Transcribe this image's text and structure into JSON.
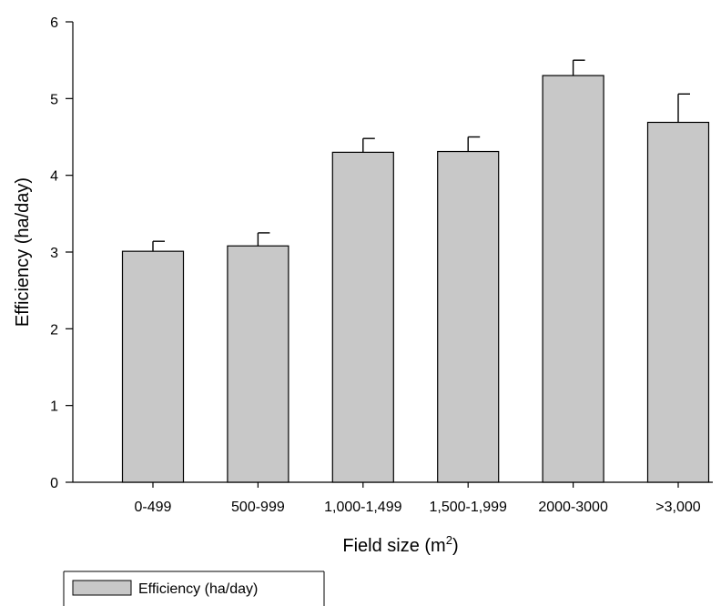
{
  "chart_data": {
    "type": "bar",
    "categories": [
      "0-499",
      "500-999",
      "1,000-1,499",
      "1,500-1,999",
      "2000-3000",
      ">3,000"
    ],
    "series": [
      {
        "name": "Efficiency (ha/day)",
        "values": [
          3.01,
          3.08,
          4.3,
          4.31,
          5.3,
          4.69
        ],
        "error_upper": [
          0.13,
          0.17,
          0.18,
          0.19,
          0.2,
          0.37
        ]
      }
    ],
    "xlabel": "Field size (m",
    "xlabel_superscript": "2",
    "xlabel_suffix": ")",
    "ylabel": "Efficiency (ha/day)",
    "ylim": [
      0,
      6
    ],
    "yticks": [
      "0",
      "1",
      "2",
      "3",
      "4",
      "5",
      "6"
    ],
    "grid": false,
    "legend_position": "bottom-left",
    "colors": {
      "bar_fill": "#c8c8c8",
      "bar_stroke": "#000000"
    }
  }
}
